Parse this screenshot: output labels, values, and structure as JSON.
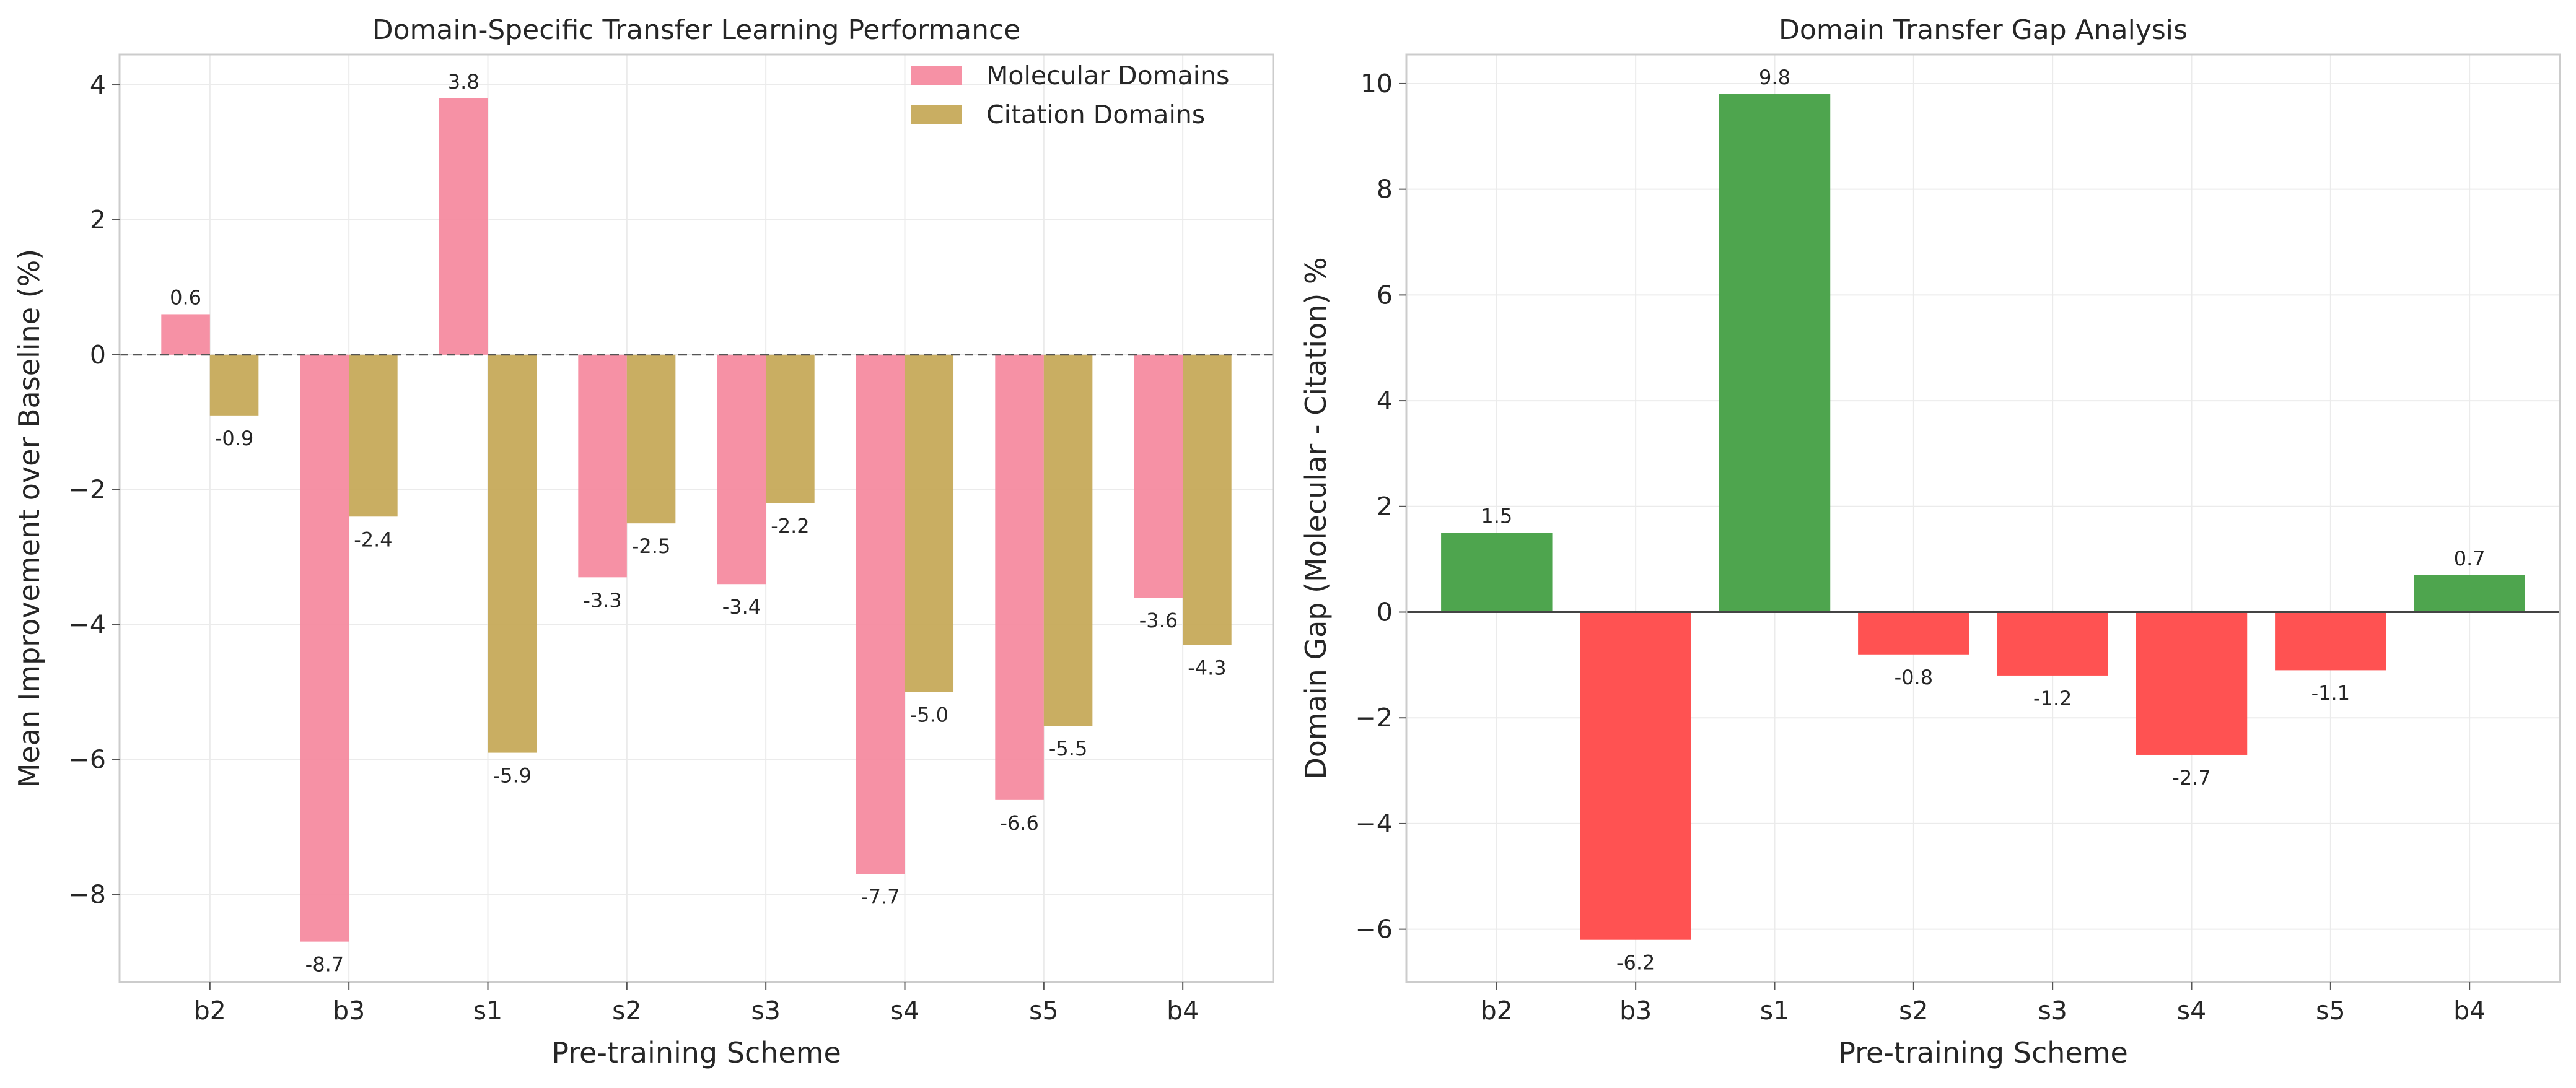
{
  "chart_data": [
    {
      "type": "bar",
      "title": "Domain-Specific Transfer Learning Performance",
      "xlabel": "Pre-training Scheme",
      "ylabel": "Mean Improvement over Baseline (%)",
      "categories": [
        "b2",
        "b3",
        "s1",
        "s2",
        "s3",
        "s4",
        "s5",
        "b4"
      ],
      "ylim": [
        -9.3,
        4.45
      ],
      "yticks": [
        -8,
        -6,
        -4,
        -2,
        0,
        2,
        4
      ],
      "ytick_labels": [
        "−8",
        "−6",
        "−4",
        "−2",
        "0",
        "2",
        "4"
      ],
      "grid": true,
      "legend_position": "top-right",
      "series": [
        {
          "name": "Molecular Domains",
          "color": "#f68ba0",
          "values": [
            0.6,
            -8.7,
            3.8,
            -3.3,
            -3.4,
            -7.7,
            -6.6,
            -3.6
          ],
          "labels": [
            "0.6",
            "-8.7",
            "3.8",
            "-3.3",
            "-3.4",
            "-7.7",
            "-6.6",
            "-3.6"
          ]
        },
        {
          "name": "Citation Domains",
          "color": "#c6aa5a",
          "values": [
            -0.9,
            -2.4,
            -5.9,
            -2.5,
            -2.2,
            -5.0,
            -5.5,
            -4.3
          ],
          "labels": [
            "-0.9",
            "-2.4",
            "-5.9",
            "-2.5",
            "-2.2",
            "-5.0",
            "-5.5",
            "-4.3"
          ]
        }
      ],
      "reference_line": 0
    },
    {
      "type": "bar",
      "title": "Domain Transfer Gap Analysis",
      "xlabel": "Pre-training Scheme",
      "ylabel": "Domain Gap (Molecular - Citation) %",
      "categories": [
        "b2",
        "b3",
        "s1",
        "s2",
        "s3",
        "s4",
        "s5",
        "b4"
      ],
      "ylim": [
        -7.0,
        10.55
      ],
      "yticks": [
        -6,
        -4,
        -2,
        0,
        2,
        4,
        6,
        8,
        10
      ],
      "ytick_labels": [
        "−6",
        "−4",
        "−2",
        "0",
        "2",
        "4",
        "6",
        "8",
        "10"
      ],
      "grid": true,
      "positive_color": "#4aa34a",
      "negative_color": "#ff4f4f",
      "series": [
        {
          "values": [
            1.5,
            -6.2,
            9.8,
            -0.8,
            -1.2,
            -2.7,
            -1.1,
            0.7
          ],
          "labels": [
            "1.5",
            "-6.2",
            "9.8",
            "-0.8",
            "-1.2",
            "-2.7",
            "-1.1",
            "0.7"
          ]
        }
      ],
      "reference_line": 0
    }
  ]
}
